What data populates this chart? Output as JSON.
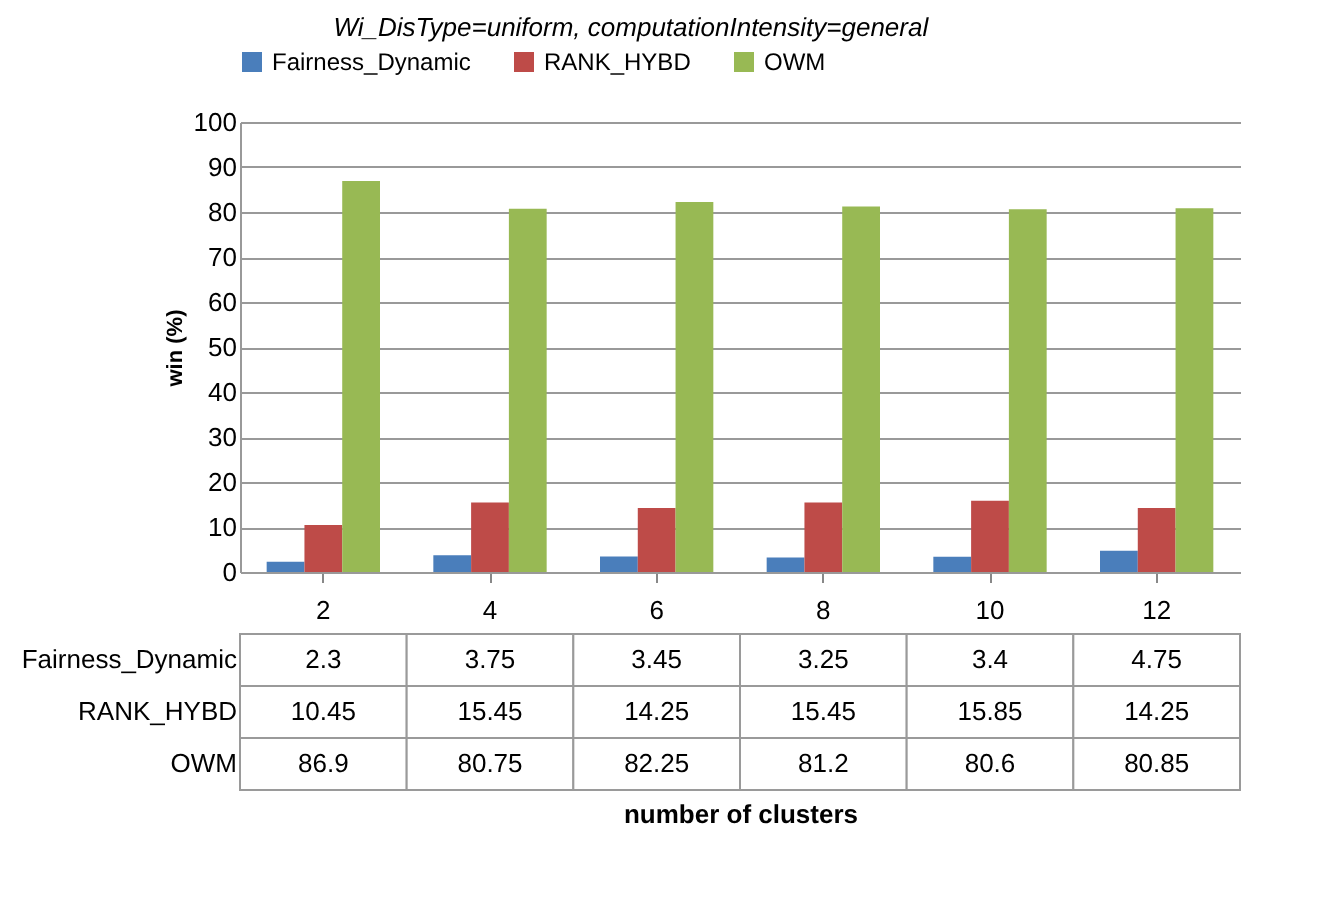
{
  "chart_data": {
    "type": "bar",
    "title": "Wi_DisType=uniform, computationIntensity=general",
    "annotations": [
      "number of clusters"
    ],
    "ylabel": "win (%)",
    "categories": [
      "2",
      "4",
      "6",
      "8",
      "10",
      "12"
    ],
    "series": [
      {
        "name": "Fairness_Dynamic",
        "color": "#4a7ebb",
        "values": [
          2.3,
          3.75,
          3.45,
          3.25,
          3.4,
          4.75
        ]
      },
      {
        "name": "RANK_HYBD",
        "color": "#be4b48",
        "values": [
          10.45,
          15.45,
          14.25,
          15.45,
          15.85,
          14.25
        ]
      },
      {
        "name": "OWM",
        "color": "#98b954",
        "values": [
          86.9,
          80.75,
          82.25,
          81.2,
          80.6,
          80.85
        ]
      }
    ],
    "ylim": [
      0,
      100
    ],
    "yticks": [
      0,
      10,
      20,
      30,
      40,
      50,
      60,
      70,
      80,
      90,
      100
    ],
    "grid": "y",
    "legend": "top",
    "data_labels": true
  }
}
